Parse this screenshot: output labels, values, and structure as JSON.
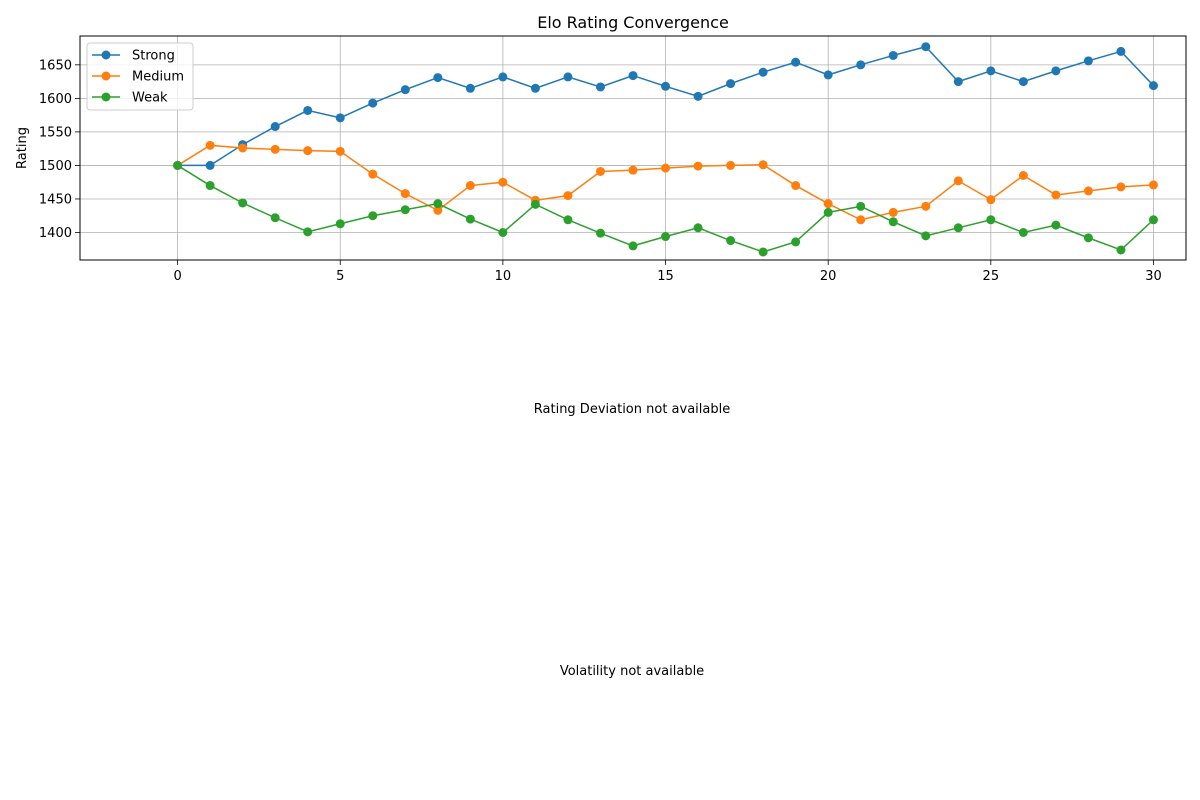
{
  "chart_data": {
    "type": "line",
    "title": "Elo Rating Convergence",
    "xlabel": "",
    "ylabel": "Rating",
    "xlim": [
      -3,
      31
    ],
    "ylim": [
      1359,
      1693
    ],
    "xticks": [
      0,
      5,
      10,
      15,
      20,
      25,
      30
    ],
    "yticks": [
      1400,
      1450,
      1500,
      1550,
      1600,
      1650
    ],
    "grid": true,
    "legend_position": "top-left",
    "x": [
      0,
      1,
      2,
      3,
      4,
      5,
      6,
      7,
      8,
      9,
      10,
      11,
      12,
      13,
      14,
      15,
      16,
      17,
      18,
      19,
      20,
      21,
      22,
      23,
      24,
      25,
      26,
      27,
      28,
      29,
      30
    ],
    "series": [
      {
        "name": "Strong",
        "color": "#1f77b4",
        "values": [
          1500,
          1500,
          1531,
          1558,
          1582,
          1571,
          1593,
          1613,
          1631,
          1615,
          1632,
          1615,
          1632,
          1617,
          1634,
          1618,
          1603,
          1622,
          1639,
          1654,
          1635,
          1650,
          1664,
          1677,
          1625,
          1641,
          1625,
          1641,
          1656,
          1670,
          1619
        ]
      },
      {
        "name": "Medium",
        "color": "#ff7f0e",
        "values": [
          1500,
          1530,
          1526,
          1524,
          1522,
          1521,
          1487,
          1458,
          1433,
          1470,
          1475,
          1448,
          1455,
          1491,
          1493,
          1496,
          1499,
          1500,
          1501,
          1470,
          1443,
          1419,
          1430,
          1439,
          1477,
          1449,
          1485,
          1456,
          1462,
          1468,
          1471
        ]
      },
      {
        "name": "Weak",
        "color": "#2ca02c",
        "values": [
          1500,
          1470,
          1444,
          1422,
          1401,
          1413,
          1425,
          1434,
          1443,
          1420,
          1400,
          1442,
          1419,
          1399,
          1380,
          1394,
          1407,
          1388,
          1371,
          1386,
          1430,
          1439,
          1416,
          1395,
          1407,
          1419,
          1400,
          1411,
          1392,
          1374,
          1419
        ]
      }
    ]
  },
  "messages": {
    "rating_deviation": "Rating Deviation not available",
    "volatility": "Volatility not available"
  }
}
